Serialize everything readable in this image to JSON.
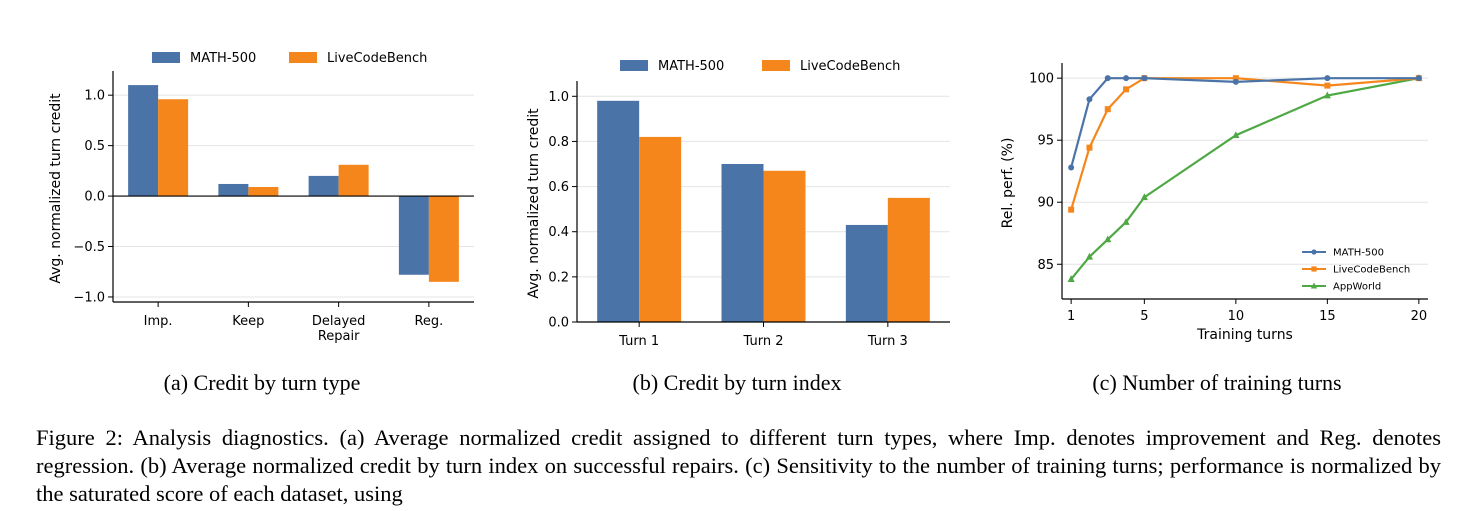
{
  "colors": {
    "math": "#4a74a8",
    "live": "#f5861b",
    "app": "#4ea843",
    "grid": "#e4e4e4",
    "axis": "#000000"
  },
  "chart_data": [
    {
      "type": "bar",
      "subcaption": "(a) Credit by turn type",
      "categories": [
        "Imp.",
        "Keep",
        "Delayed\nRepair",
        "Reg."
      ],
      "category_lines": [
        [
          "Imp."
        ],
        [
          "Keep"
        ],
        [
          "Delayed",
          "Repair"
        ],
        [
          "Reg."
        ]
      ],
      "series": [
        {
          "name": "MATH-500",
          "values": [
            1.1,
            0.12,
            0.2,
            -0.78
          ]
        },
        {
          "name": "LiveCodeBench",
          "values": [
            0.96,
            0.09,
            0.31,
            -0.85
          ]
        }
      ],
      "ylabel": "Avg. normalized turn credit",
      "ylim": [
        -1.05,
        1.2
      ],
      "yticks": [
        -1.0,
        -0.5,
        0.0,
        0.5,
        1.0
      ],
      "ytick_labels": [
        "−1.0",
        "−0.5",
        "0.0",
        "0.5",
        "1.0"
      ],
      "grid": true,
      "legend": "top"
    },
    {
      "type": "bar",
      "subcaption": "(b) Credit by turn index",
      "categories": [
        "Turn 1",
        "Turn 2",
        "Turn 3"
      ],
      "series": [
        {
          "name": "MATH-500",
          "values": [
            0.98,
            0.7,
            0.43
          ]
        },
        {
          "name": "LiveCodeBench",
          "values": [
            0.82,
            0.67,
            0.55
          ]
        }
      ],
      "ylabel": "Avg. normalized turn credit",
      "ylim": [
        0.0,
        1.05
      ],
      "yticks": [
        0.0,
        0.2,
        0.4,
        0.6,
        0.8,
        1.0
      ],
      "ytick_labels": [
        "0.0",
        "0.2",
        "0.4",
        "0.6",
        "0.8",
        "1.0"
      ],
      "grid": true,
      "legend": "top"
    },
    {
      "type": "line",
      "subcaption": "(c) Number of training turns",
      "series": [
        {
          "name": "MATH-500",
          "marker": "circle",
          "x": [
            1,
            2,
            3,
            4,
            5,
            10,
            15,
            20
          ],
          "y": [
            92.8,
            98.3,
            100.0,
            100.0,
            100.0,
            99.7,
            100.0,
            100.0
          ]
        },
        {
          "name": "LiveCodeBench",
          "marker": "square",
          "x": [
            1,
            2,
            3,
            4,
            5,
            10,
            15,
            20
          ],
          "y": [
            89.4,
            94.4,
            97.5,
            99.1,
            100.0,
            100.0,
            99.4,
            100.0
          ]
        },
        {
          "name": "AppWorld",
          "marker": "triangle",
          "x": [
            1,
            2,
            3,
            4,
            5,
            10,
            15,
            20
          ],
          "y": [
            83.8,
            85.6,
            87.0,
            88.4,
            90.4,
            95.4,
            98.6,
            100.0
          ]
        }
      ],
      "xlabel": "Training turns",
      "ylabel": "Rel. perf. (%)",
      "xlim": [
        0.5,
        20.5
      ],
      "ylim": [
        82.2,
        100.9
      ],
      "xticks": [
        1,
        5,
        10,
        15,
        20
      ],
      "yticks": [
        85,
        90,
        95,
        100
      ],
      "grid": true,
      "legend": "lower-right"
    }
  ],
  "caption": "Figure 2: Analysis diagnostics. (a) Average normalized credit assigned to different turn types, where Imp. denotes improvement and Reg. denotes regression. (b) Average normalized credit by turn index on successful repairs. (c) Sensitivity to the number of training turns; performance is normalized by the saturated score of each dataset, using"
}
